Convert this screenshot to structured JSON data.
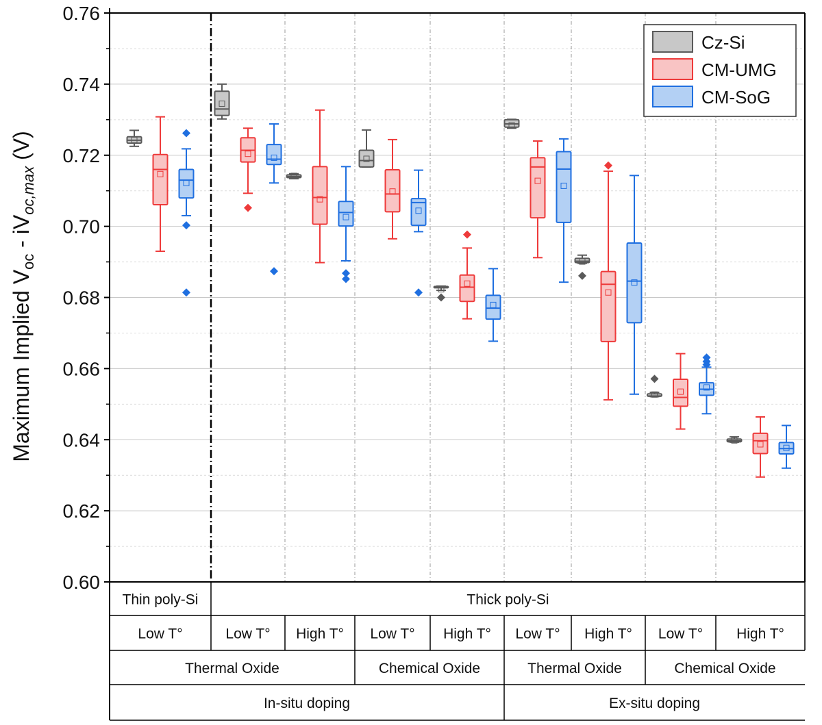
{
  "chart_data": {
    "type": "box",
    "ylabel_parts": {
      "main": "Maximum Implied V",
      "sub1": "oc",
      "mid": " - iV",
      "sub2": "oc,max",
      "unit": " (V)"
    },
    "ylim": [
      0.6,
      0.76
    ],
    "yticks": [
      "0.60",
      "0.62",
      "0.64",
      "0.66",
      "0.68",
      "0.70",
      "0.72",
      "0.74",
      "0.76"
    ],
    "grid": true,
    "legend_position": "top-right",
    "series": [
      {
        "name": "Cz-Si",
        "stroke": "#5a5a5a",
        "fill": "#c8c8c8"
      },
      {
        "name": "CM-UMG",
        "stroke": "#ee3a3a",
        "fill": "#f9c4c4"
      },
      {
        "name": "CM-SoG",
        "stroke": "#1f6fe0",
        "fill": "#b3d0f4"
      }
    ],
    "groups": [
      {
        "boxes": [
          {
            "series": 0,
            "min": 0.7225,
            "q1": 0.7234,
            "median": 0.7242,
            "q3": 0.7252,
            "max": 0.727,
            "mean": 0.7243,
            "outliers": []
          },
          {
            "series": 1,
            "min": 0.693,
            "q1": 0.7061,
            "median": 0.716,
            "q3": 0.7202,
            "max": 0.7308,
            "mean": 0.7147,
            "outliers": []
          },
          {
            "series": 2,
            "min": 0.703,
            "q1": 0.708,
            "median": 0.713,
            "q3": 0.716,
            "max": 0.7218,
            "mean": 0.7122,
            "outliers": [
              0.7262,
              0.7003,
              0.6814
            ]
          }
        ]
      },
      {
        "boxes": [
          {
            "series": 0,
            "min": 0.7302,
            "q1": 0.7312,
            "median": 0.733,
            "q3": 0.738,
            "max": 0.74,
            "mean": 0.7345,
            "outliers": []
          },
          {
            "series": 1,
            "min": 0.7093,
            "q1": 0.7181,
            "median": 0.7214,
            "q3": 0.7249,
            "max": 0.7276,
            "mean": 0.7204,
            "outliers": [
              0.7052
            ]
          },
          {
            "series": 2,
            "min": 0.7122,
            "q1": 0.7174,
            "median": 0.7189,
            "q3": 0.723,
            "max": 0.7288,
            "mean": 0.7193,
            "outliers": [
              0.6874
            ]
          }
        ]
      },
      {
        "boxes": [
          {
            "series": 0,
            "min": 0.7134,
            "q1": 0.7137,
            "median": 0.714,
            "q3": 0.7145,
            "max": 0.7148,
            "mean": 0.7142,
            "outliers": []
          },
          {
            "series": 1,
            "min": 0.6898,
            "q1": 0.7006,
            "median": 0.7081,
            "q3": 0.7168,
            "max": 0.7327,
            "mean": 0.7076,
            "outliers": []
          },
          {
            "series": 2,
            "min": 0.6903,
            "q1": 0.7001,
            "median": 0.7039,
            "q3": 0.707,
            "max": 0.7168,
            "mean": 0.7026,
            "outliers": [
              0.6868,
              0.6852
            ]
          }
        ]
      },
      {
        "boxes": [
          {
            "series": 0,
            "min": 0.7167,
            "q1": 0.7167,
            "median": 0.7185,
            "q3": 0.7214,
            "max": 0.7271,
            "mean": 0.719,
            "outliers": []
          },
          {
            "series": 1,
            "min": 0.6965,
            "q1": 0.7041,
            "median": 0.7091,
            "q3": 0.7159,
            "max": 0.7244,
            "mean": 0.7098,
            "outliers": []
          },
          {
            "series": 2,
            "min": 0.6985,
            "q1": 0.7003,
            "median": 0.7067,
            "q3": 0.7078,
            "max": 0.7158,
            "mean": 0.7044,
            "outliers": [
              0.6814
            ]
          }
        ]
      },
      {
        "boxes": [
          {
            "series": 0,
            "min": 0.682,
            "q1": 0.6829,
            "median": 0.683,
            "q3": 0.6831,
            "max": 0.6832,
            "mean": 0.6823,
            "outliers": [
              0.68
            ]
          },
          {
            "series": 1,
            "min": 0.674,
            "q1": 0.6789,
            "median": 0.6829,
            "q3": 0.6863,
            "max": 0.6939,
            "mean": 0.6839,
            "outliers": [
              0.6977
            ]
          },
          {
            "series": 2,
            "min": 0.6677,
            "q1": 0.6739,
            "median": 0.677,
            "q3": 0.6806,
            "max": 0.6881,
            "mean": 0.6779,
            "outliers": []
          }
        ]
      },
      {
        "boxes": [
          {
            "series": 0,
            "min": 0.7276,
            "q1": 0.7279,
            "median": 0.7288,
            "q3": 0.73,
            "max": 0.7301,
            "mean": 0.7284,
            "outliers": []
          },
          {
            "series": 1,
            "min": 0.6912,
            "q1": 0.7024,
            "median": 0.7167,
            "q3": 0.7193,
            "max": 0.724,
            "mean": 0.7128,
            "outliers": []
          },
          {
            "series": 2,
            "min": 0.6843,
            "q1": 0.7011,
            "median": 0.7161,
            "q3": 0.721,
            "max": 0.7246,
            "mean": 0.7114,
            "outliers": []
          }
        ]
      },
      {
        "boxes": [
          {
            "series": 0,
            "min": 0.6896,
            "q1": 0.6898,
            "median": 0.6902,
            "q3": 0.691,
            "max": 0.6919,
            "mean": 0.6901,
            "outliers": [
              0.6861
            ]
          },
          {
            "series": 1,
            "min": 0.6512,
            "q1": 0.6676,
            "median": 0.6837,
            "q3": 0.6873,
            "max": 0.7155,
            "mean": 0.6814,
            "outliers": [
              0.7171
            ]
          },
          {
            "series": 2,
            "min": 0.6528,
            "q1": 0.6729,
            "median": 0.6846,
            "q3": 0.6953,
            "max": 0.7143,
            "mean": 0.6842,
            "outliers": []
          }
        ]
      },
      {
        "boxes": [
          {
            "series": 0,
            "min": 0.6521,
            "q1": 0.6522,
            "median": 0.6523,
            "q3": 0.6529,
            "max": 0.6533,
            "mean": 0.6527,
            "outliers": [
              0.6571
            ]
          },
          {
            "series": 1,
            "min": 0.643,
            "q1": 0.6494,
            "median": 0.6519,
            "q3": 0.657,
            "max": 0.6642,
            "mean": 0.6535,
            "outliers": []
          },
          {
            "series": 2,
            "min": 0.6473,
            "q1": 0.6525,
            "median": 0.6542,
            "q3": 0.656,
            "max": 0.6604,
            "mean": 0.6547,
            "outliers": [
              0.6631,
              0.662,
              0.6611
            ]
          }
        ]
      },
      {
        "boxes": [
          {
            "series": 0,
            "min": 0.6393,
            "q1": 0.6394,
            "median": 0.6397,
            "q3": 0.6402,
            "max": 0.6408,
            "mean": 0.6398,
            "outliers": []
          },
          {
            "series": 1,
            "min": 0.6295,
            "q1": 0.6361,
            "median": 0.6397,
            "q3": 0.6418,
            "max": 0.6464,
            "mean": 0.6387,
            "outliers": []
          },
          {
            "series": 2,
            "min": 0.632,
            "q1": 0.636,
            "median": 0.6375,
            "q3": 0.6392,
            "max": 0.644,
            "mean": 0.6377,
            "outliers": []
          }
        ]
      }
    ],
    "category_table": [
      {
        "row": "poly-Si thickness",
        "cells": [
          {
            "label": "Thin poly-Si",
            "span": 1
          },
          {
            "label": "Thick poly-Si",
            "span": 8
          }
        ]
      },
      {
        "row": "temperature",
        "cells": [
          {
            "label": "Low T°",
            "span": 1
          },
          {
            "label": "Low T°",
            "span": 1
          },
          {
            "label": "High T°",
            "span": 1
          },
          {
            "label": "Low T°",
            "span": 1
          },
          {
            "label": "High T°",
            "span": 1
          },
          {
            "label": "Low T°",
            "span": 1
          },
          {
            "label": "High T°",
            "span": 1
          },
          {
            "label": "Low T°",
            "span": 1
          },
          {
            "label": "High T°",
            "span": 1
          }
        ]
      },
      {
        "row": "oxide",
        "cells": [
          {
            "label": "Thermal Oxide",
            "span": 3
          },
          {
            "label": "Chemical Oxide",
            "span": 2
          },
          {
            "label": "Thermal Oxide",
            "span": 2
          },
          {
            "label": "Chemical Oxide",
            "span": 2
          }
        ]
      },
      {
        "row": "doping",
        "cells": [
          {
            "label": "In-situ doping",
            "span": 5
          },
          {
            "label": "Ex-situ doping",
            "span": 4
          }
        ]
      }
    ]
  }
}
